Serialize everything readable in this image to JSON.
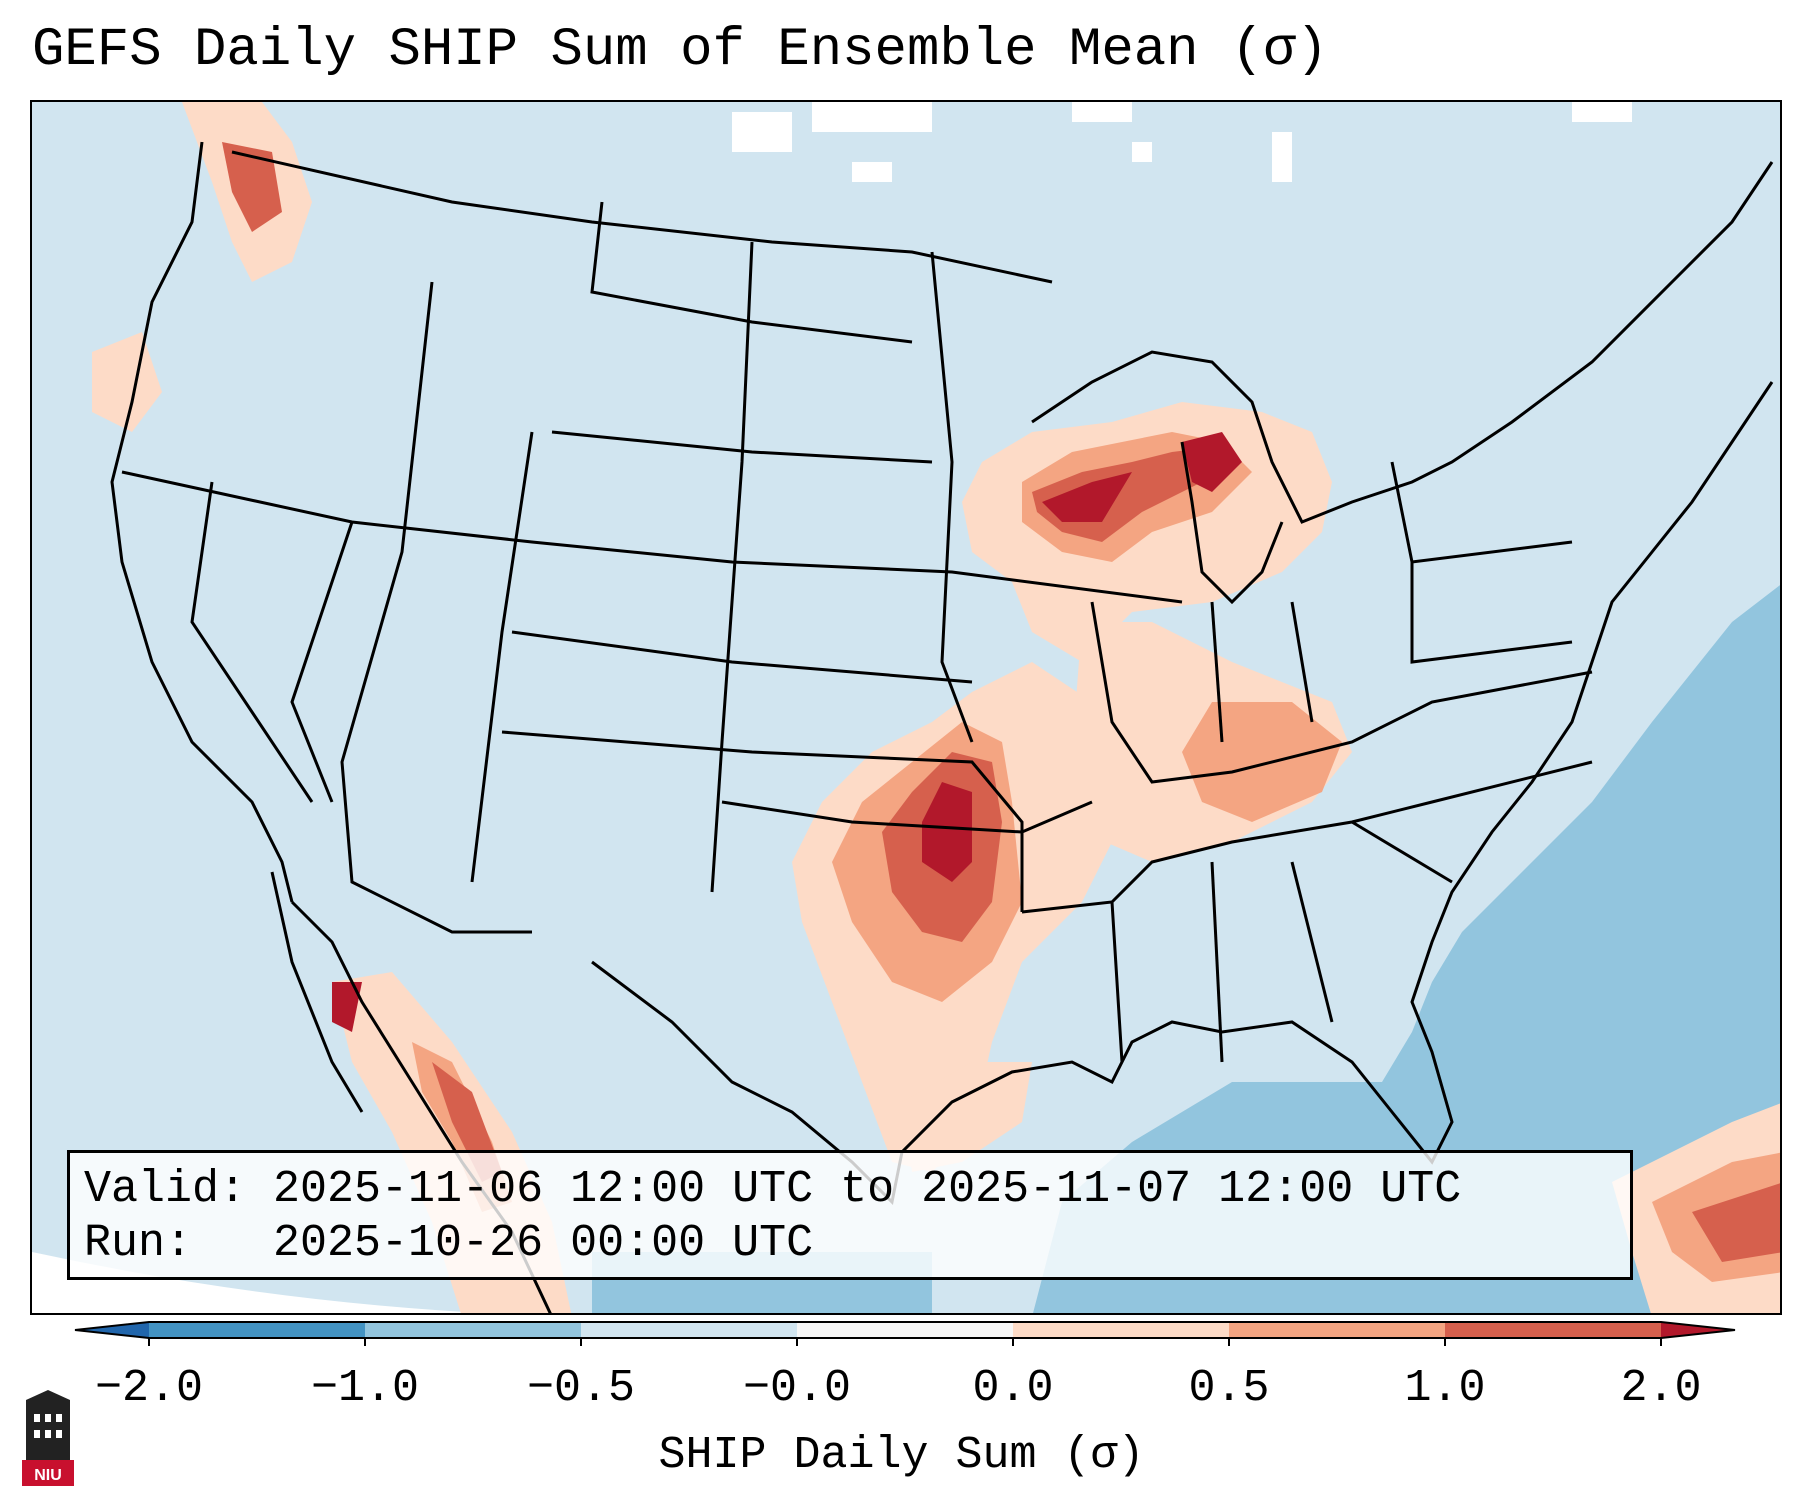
{
  "title": "GEFS Daily SHIP Sum of Ensemble Mean (σ)",
  "info": {
    "valid_line": "Valid: 2025-11-06 12:00 UTC to 2025-11-07 12:00 UTC",
    "run_line": "Run:   2025-10-26 00:00 UTC"
  },
  "colorbar": {
    "label": "SHIP Daily Sum (σ)",
    "ticks": [
      "−2.0",
      "−1.0",
      "−0.5",
      "−0.0",
      "0.0",
      "0.5",
      "1.0",
      "2.0"
    ],
    "colors": [
      "#4393c3",
      "#92c5de",
      "#d1e5f0",
      "#f7f7f7",
      "#fddbc7",
      "#f4a582",
      "#d6604d",
      "#b2182b"
    ]
  },
  "map": {
    "type": "filled-contour-map",
    "region": "Contiguous United States",
    "background_level_color": "#d1e5f0",
    "ocean_level_color": "#92c5de",
    "hotspots": [
      "Wisconsin / Upper Michigan",
      "Kansas / Oklahoma",
      "Kentucky / Tennessee",
      "Western Mexico",
      "Caribbean / Hispaniola"
    ]
  },
  "logo": {
    "text": "NIU"
  }
}
